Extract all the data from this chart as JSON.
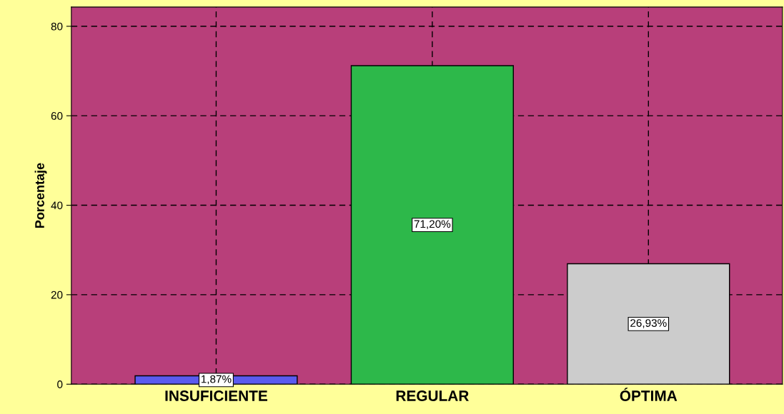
{
  "chart_data": {
    "type": "bar",
    "ylabel": "Porcentaje",
    "categories": [
      "INSUFICIENTE",
      "REGULAR",
      "ÓPTIMA"
    ],
    "values": [
      1.87,
      71.2,
      26.93
    ],
    "colors": [
      "#5b5bef",
      "#2db84a",
      "#cccccc"
    ],
    "value_labels": [
      "1,87%",
      "71,20%",
      "26,93%"
    ],
    "ylim": [
      0,
      84.3
    ],
    "yticks": [
      0,
      20,
      40,
      60,
      80
    ],
    "grid": true,
    "legend": false
  }
}
